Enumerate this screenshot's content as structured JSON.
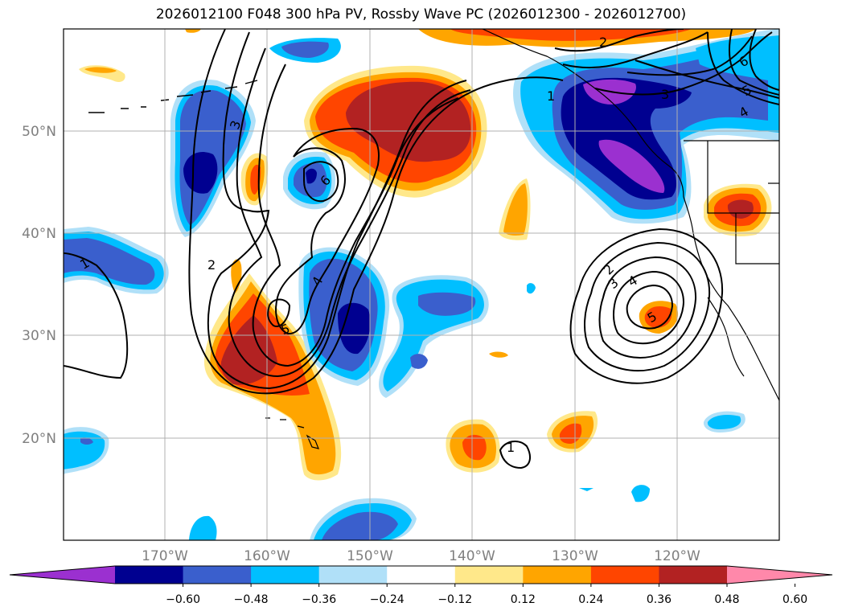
{
  "title": "2026012100 F048 300 hPa PV, Rossby Wave PC (2026012300 - 2026012700)",
  "map": {
    "lat_labels": [
      "50°N",
      "40°N",
      "30°N",
      "20°N"
    ],
    "lon_labels": [
      "170°W",
      "160°W",
      "150°W",
      "140°W",
      "130°W",
      "120°W"
    ]
  },
  "colorbar": {
    "ticks": [
      "−0.60",
      "−0.48",
      "−0.36",
      "−0.24",
      "−0.12",
      "0.12",
      "0.24",
      "0.36",
      "0.48",
      "0.60"
    ],
    "colors": [
      "#9b30d0",
      "#000090",
      "#3a5fcd",
      "#00bfff",
      "#b0e0f8",
      "#ffffff",
      "#ffe88a",
      "#ffa500",
      "#ff4500",
      "#b22222",
      "#ff88aa"
    ]
  },
  "contour_labels": [
    "1",
    "2",
    "3",
    "4",
    "5",
    "6",
    "2",
    "3",
    "4",
    "5",
    "1",
    "2",
    "3",
    "4",
    "5",
    "6",
    "1"
  ]
}
